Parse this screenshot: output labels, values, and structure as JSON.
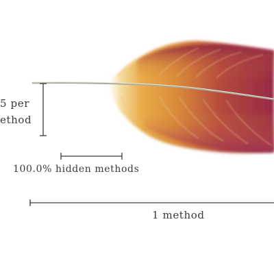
{
  "diagram": {
    "vertical_label_line1": "5 per",
    "vertical_label_line2": "ethod",
    "hidden_label": "100.0% hidden methods",
    "bottom_label": "1 method"
  },
  "colors": {
    "feather_crimson": "#9c2f45",
    "feather_gold": "#e3a43a",
    "feather_light": "#f7e4b3",
    "ink": "#3a3a3a",
    "shaft": "#b8b8a8"
  }
}
